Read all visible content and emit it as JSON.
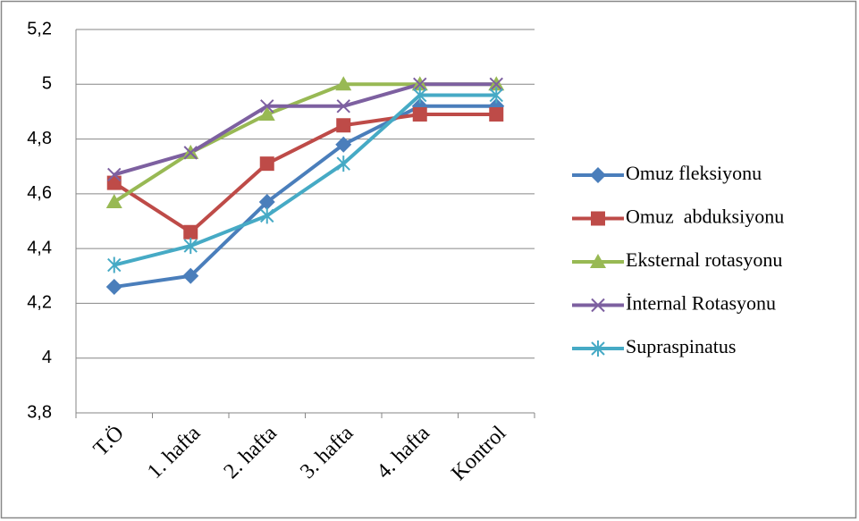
{
  "chart_data": {
    "type": "line",
    "categories": [
      "T.Ö",
      "1. hafta",
      "2. hafta",
      "3. hafta",
      "4. hafta",
      "Kontrol"
    ],
    "series": [
      {
        "name": "Omuz fleksiyonu",
        "color": "#4a7ebb",
        "marker": "diamond",
        "values": [
          4.26,
          4.3,
          4.57,
          4.78,
          4.92,
          4.92
        ]
      },
      {
        "name": "Omuz  abduksiyonu",
        "color": "#be4b48",
        "marker": "square",
        "values": [
          4.64,
          4.46,
          4.71,
          4.85,
          4.89,
          4.89
        ]
      },
      {
        "name": "Eksternal rotasyonu",
        "color": "#98b954",
        "marker": "triangle",
        "values": [
          4.57,
          4.75,
          4.89,
          5.0,
          5.0,
          5.0
        ]
      },
      {
        "name": "İnternal Rotasyonu",
        "color": "#7d60a0",
        "marker": "x",
        "values": [
          4.67,
          4.75,
          4.92,
          4.92,
          5.0,
          5.0
        ]
      },
      {
        "name": "Supraspinatus",
        "color": "#46aac5",
        "marker": "star",
        "values": [
          4.34,
          4.41,
          4.52,
          4.71,
          4.96,
          4.96
        ]
      }
    ],
    "ylim": [
      3.8,
      5.2
    ],
    "yticks": [
      {
        "value": 3.8,
        "label": "3,8"
      },
      4,
      {
        "value": 4.2,
        "label": "4,2"
      },
      {
        "value": 4.4,
        "label": "4,4"
      },
      {
        "value": 4.6,
        "label": "4,6"
      },
      {
        "value": 4.8,
        "label": "4,8"
      },
      5,
      {
        "value": 5.2,
        "label": "5,2"
      }
    ],
    "grid": true,
    "legend": "right"
  }
}
